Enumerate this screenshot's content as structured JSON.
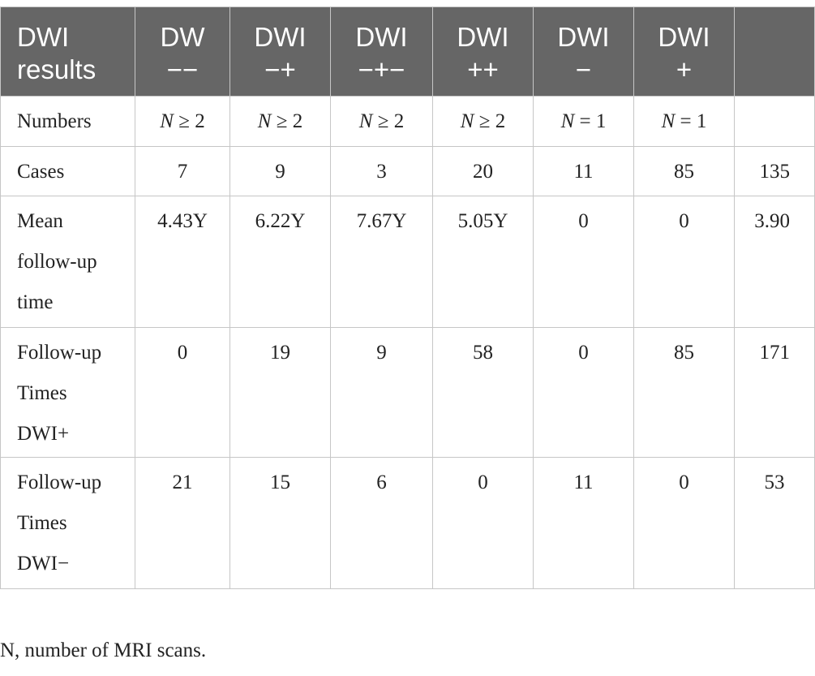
{
  "table": {
    "header": [
      {
        "line1": "DWI",
        "line2": "results"
      },
      {
        "line1": "DW",
        "line2": "−−"
      },
      {
        "line1": "DWI",
        "line2": "−+"
      },
      {
        "line1": "DWI",
        "line2": "−+−"
      },
      {
        "line1": "DWI",
        "line2": "++"
      },
      {
        "line1": "DWI",
        "line2": "−"
      },
      {
        "line1": "DWI",
        "line2": "+"
      },
      {
        "line1": "",
        "line2": ""
      }
    ],
    "rows": [
      {
        "label": [
          "Numbers"
        ],
        "cells": [
          "N ≥ 2",
          "N ≥ 2",
          "N ≥ 2",
          "N ≥ 2",
          "N = 1",
          "N = 1",
          ""
        ]
      },
      {
        "label": [
          "Cases"
        ],
        "cells": [
          "7",
          "9",
          "3",
          "20",
          "11",
          "85",
          "135"
        ]
      },
      {
        "label": [
          "Mean",
          "follow-up",
          "time"
        ],
        "cells": [
          "4.43Y",
          "6.22Y",
          "7.67Y",
          "5.05Y",
          "0",
          "0",
          "3.90"
        ]
      },
      {
        "label": [
          "Follow-up",
          "Times",
          "DWI+"
        ],
        "cells": [
          "0",
          "19",
          "9",
          "58",
          "0",
          "85",
          "171"
        ]
      },
      {
        "label": [
          "Follow-up",
          "Times",
          "DWI−"
        ],
        "cells": [
          "21",
          "15",
          "6",
          "0",
          "11",
          "0",
          "53"
        ]
      }
    ]
  },
  "footnote": "N, number of MRI scans."
}
